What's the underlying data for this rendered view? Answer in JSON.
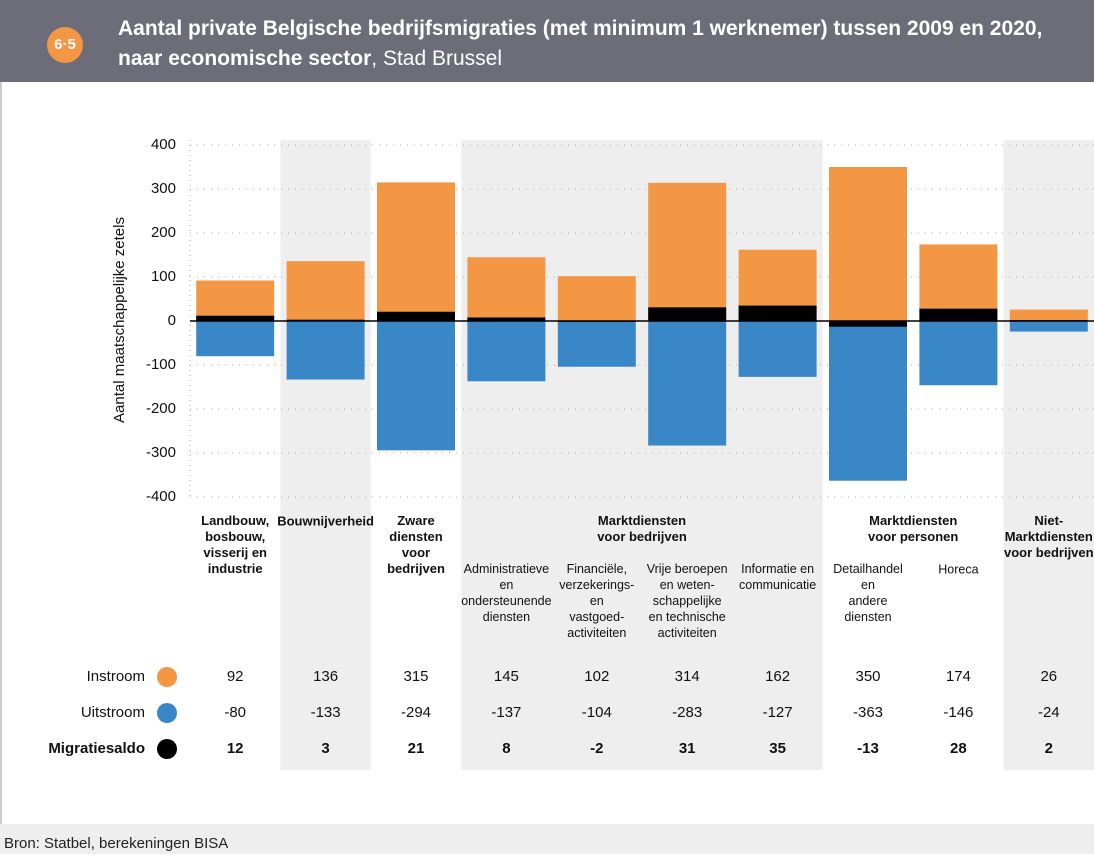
{
  "header": {
    "badge": "6·5",
    "title": "Aantal private Belgische bedrijfsmigraties (met minimum 1 werknemer) tussen 2009 en 2020, naar economische sector",
    "subtitle": ", Stad Brussel"
  },
  "chart_data": {
    "type": "bar",
    "ylabel": "Aantal maatschappelijke zetels",
    "ylim": [
      -400,
      400
    ],
    "yticks": [
      -400,
      -300,
      -200,
      -100,
      0,
      100,
      200,
      300,
      400
    ],
    "grid": true,
    "groups": [
      {
        "label": "Landbouw,\nbosbouw,\nvisserij en\nindustrie",
        "categories": [
          null
        ]
      },
      {
        "label": "Bouwnijverheid",
        "categories": [
          null
        ]
      },
      {
        "label": "Zware\ndiensten\nvoor\nbedrijven",
        "categories": [
          null
        ]
      },
      {
        "label": "Marktdiensten\nvoor bedrijven",
        "categories": [
          "Administratieve\nen\nondersteunende\ndiensten",
          "Financiële,\nverzekerings-\nen\nvastgoed-\nactiviteiten",
          "Vrije beroepen\nen weten-\nschappelijke\nen technische\nactiviteiten",
          "Informatie en\ncommunicatie"
        ]
      },
      {
        "label": "Marktdiensten\nvoor personen",
        "categories": [
          "Detailhandel\nen\nandere\ndiensten",
          "Horeca"
        ]
      },
      {
        "label": "Niet-\nMarktdiensten\nvoor bedrijven",
        "categories": [
          null
        ]
      }
    ],
    "series": [
      {
        "name": "Instroom",
        "color": "#f39744",
        "values": [
          92,
          136,
          315,
          145,
          102,
          314,
          162,
          350,
          174,
          26
        ]
      },
      {
        "name": "Uitstroom",
        "color": "#3a87c8",
        "values": [
          -80,
          -133,
          -294,
          -137,
          -104,
          -283,
          -127,
          -363,
          -146,
          -24
        ]
      },
      {
        "name": "Migratiesaldo",
        "color": "#000000",
        "values": [
          12,
          3,
          21,
          8,
          -2,
          31,
          35,
          -13,
          28,
          2
        ]
      }
    ]
  },
  "footer": {
    "source": "Bron: Statbel, berekeningen BISA"
  }
}
